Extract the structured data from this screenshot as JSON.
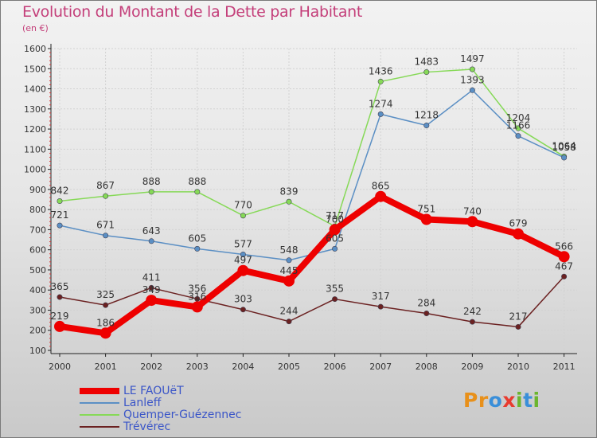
{
  "title": "Evolution du Montant de la Dette par Habitant",
  "subtitle": "(en €)",
  "logo": {
    "text": "Proxiti",
    "letters": [
      {
        "ch": "P",
        "color": "#e8901a"
      },
      {
        "ch": "r",
        "color": "#e8901a"
      },
      {
        "ch": "o",
        "color": "#3a8fd9"
      },
      {
        "ch": "x",
        "color": "#e83b2f"
      },
      {
        "ch": "i",
        "color": "#6bb52e"
      },
      {
        "ch": "t",
        "color": "#3a8fd9"
      },
      {
        "ch": "i",
        "color": "#6bb52e"
      }
    ]
  },
  "chart_data": {
    "type": "line",
    "x": [
      "2000",
      "2001",
      "2002",
      "2003",
      "2004",
      "2005",
      "2006",
      "2007",
      "2008",
      "2009",
      "2010",
      "2011"
    ],
    "ylim": [
      100,
      1600
    ],
    "yticks": [
      "100",
      "200",
      "300",
      "400",
      "500",
      "600",
      "700",
      "800",
      "900",
      "1000",
      "1100",
      "1200",
      "1300",
      "1400",
      "1500",
      "1600"
    ],
    "grid": true,
    "legend_position": "bottom-left",
    "series": [
      {
        "name": "LE FAOUëT",
        "color": "#ee0000",
        "values": [
          219,
          186,
          349,
          316,
          497,
          445,
          700,
          865,
          751,
          740,
          679,
          566
        ],
        "labels": [
          "219",
          "186",
          "349",
          "316",
          "497",
          "445",
          "700",
          "865",
          "751",
          "740",
          "679",
          "566"
        ]
      },
      {
        "name": "Lanleff",
        "color": "#5b8fc4",
        "values": [
          721,
          671,
          643,
          605,
          577,
          548,
          605,
          1274,
          1218,
          1393,
          1166,
          1058
        ],
        "labels": [
          "721",
          "671",
          "643",
          "605",
          "577",
          "548",
          "605",
          "1274",
          "1218",
          "1393",
          "1166",
          "1058"
        ]
      },
      {
        "name": "Quemper-Guézennec",
        "color": "#86d957",
        "values": [
          842,
          867,
          888,
          888,
          770,
          839,
          717,
          1436,
          1483,
          1497,
          1204,
          1064
        ],
        "labels": [
          "842",
          "867",
          "888",
          "888",
          "770",
          "839",
          "717",
          "1436",
          "1483",
          "1497",
          "1204",
          "1064"
        ]
      },
      {
        "name": "Trévérec",
        "color": "#6b2121",
        "values": [
          365,
          325,
          411,
          356,
          303,
          244,
          355,
          317,
          284,
          242,
          217,
          467
        ],
        "labels": [
          "365",
          "325",
          "411",
          "356",
          "303",
          "244",
          "355",
          "317",
          "284",
          "242",
          "217",
          "467"
        ]
      }
    ]
  }
}
